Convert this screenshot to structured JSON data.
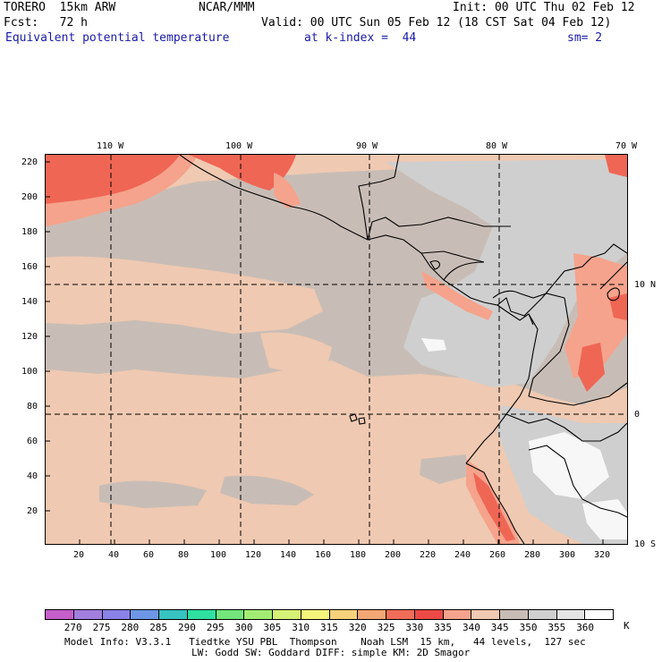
{
  "header": {
    "model": "TORERO  15km ARW",
    "org": "NCAR/MMM",
    "init": "Init: 00 UTC Thu 02 Feb 12",
    "fcst": "Fcst:   72 h",
    "valid": "Valid: 00 UTC Sun 05 Feb 12 (18 CST Sat 04 Feb 12)",
    "field": "Equivalent potential temperature",
    "level": "at k-index =  44",
    "smooth": "sm= 2"
  },
  "map": {
    "lon_labels": [
      "110 W",
      "100 W",
      "90 W",
      "80 W",
      "70 W"
    ],
    "lat_labels": [
      "10 N",
      "0",
      "10 S"
    ],
    "y_ticks": [
      "220",
      "200",
      "180",
      "160",
      "140",
      "120",
      "100",
      "80",
      "60",
      "40",
      "20"
    ],
    "x_ticks": [
      "20",
      "40",
      "60",
      "80",
      "100",
      "120",
      "140",
      "160",
      "180",
      "200",
      "220",
      "240",
      "260",
      "280",
      "300",
      "320"
    ],
    "colors": {
      "background": "#efc9b1",
      "grey_dark": "#c8bdb6",
      "grey_light": "#cfcfcf",
      "white": "#f7f7f7",
      "salmon": "#f5a38c",
      "red": "#ef6655",
      "red_dark": "#ec4a47"
    }
  },
  "colorbar": {
    "labels": [
      "270",
      "275",
      "280",
      "285",
      "290",
      "295",
      "300",
      "305",
      "310",
      "315",
      "320",
      "325",
      "330",
      "335",
      "340",
      "345",
      "350",
      "355",
      "360"
    ],
    "unit": "K",
    "colors": [
      "#c55ec9",
      "#a27fde",
      "#8a82e8",
      "#6e96e6",
      "#37c3c0",
      "#2fe0a0",
      "#72e67a",
      "#a2ec74",
      "#d6f276",
      "#f6f47b",
      "#f7d27b",
      "#f3a774",
      "#ef6d59",
      "#ec4a47",
      "#f5a38c",
      "#efc9b1",
      "#c8bdb6",
      "#cfcfcf",
      "#e4e4e4",
      "#ffffff"
    ]
  },
  "footer": {
    "line1": "Model Info: V3.3.1   Tiedtke YSU PBL  Thompson    Noah LSM  15 km,   44 levels,  127 sec",
    "line2": "LW: Godd SW: Goddard DIFF: simple KM: 2D Smagor"
  }
}
